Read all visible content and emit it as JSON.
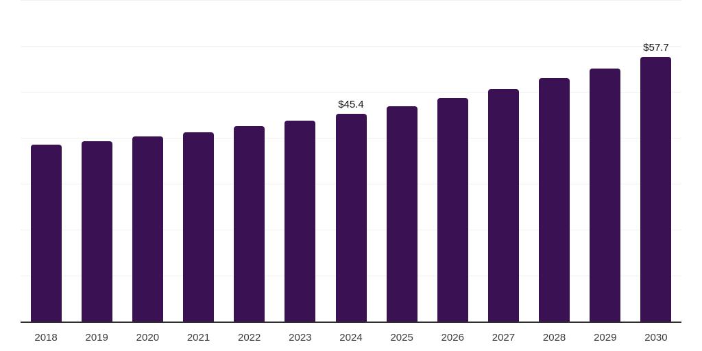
{
  "chart_data": {
    "type": "bar",
    "title": "",
    "xlabel": "",
    "ylabel": "",
    "categories": [
      "2018",
      "2019",
      "2020",
      "2021",
      "2022",
      "2023",
      "2024",
      "2025",
      "2026",
      "2027",
      "2028",
      "2029",
      "2030"
    ],
    "values": [
      38.7,
      39.4,
      40.5,
      41.4,
      42.7,
      43.9,
      45.4,
      47.0,
      48.8,
      50.8,
      53.1,
      55.2,
      57.7
    ],
    "point_labels": {
      "2024": "$45.4",
      "2030": "$57.7"
    },
    "value_prefix": "$",
    "ylim": [
      0,
      70
    ],
    "grid_step": 10,
    "gridlines": "horizontal",
    "legend": "none",
    "colors": {
      "bar": "#3A1253",
      "gridline": "#f1f1f1",
      "axis_line": "#2e2e2e",
      "tick_label": "#3a3a3a",
      "data_label": "#0f0f0f",
      "background": "#ffffff"
    }
  }
}
